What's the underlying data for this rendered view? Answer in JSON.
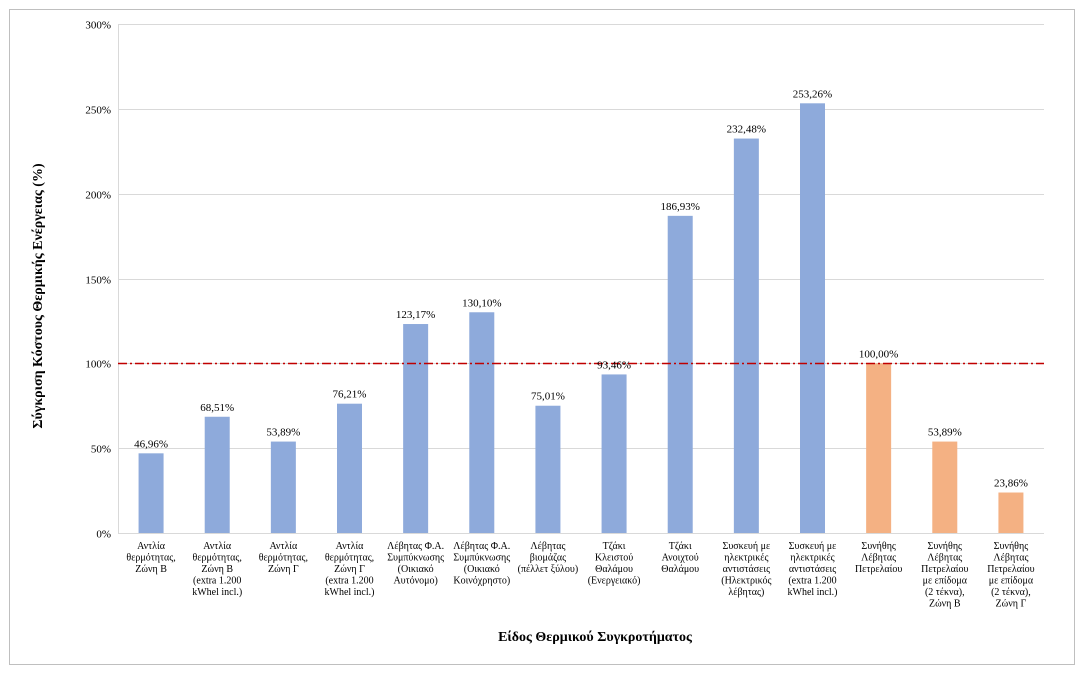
{
  "chart_data": {
    "type": "bar",
    "title": "",
    "xlabel": "Είδος Θερμικού Συγκροτήματος",
    "ylabel": "Σύγκριση Κόστους Θερμικής Ενέργειας (%)",
    "ylim": [
      0,
      300
    ],
    "yticks": [
      0,
      50,
      100,
      150,
      200,
      250,
      300
    ],
    "ytick_labels": [
      "0%",
      "50%",
      "100%",
      "150%",
      "200%",
      "250%",
      "300%"
    ],
    "grid": true,
    "reference_line": {
      "value": 100,
      "color": "#c00000",
      "style": "dash-dot"
    },
    "colors": {
      "heat": "#8eaadb",
      "oil": "#f4b183"
    },
    "categories": [
      [
        "Αντλία",
        "θερμότητας,",
        "Ζώνη Β"
      ],
      [
        "Αντλία",
        "θερμότητας,",
        "Ζώνη Β",
        "(extra 1.200",
        "kWhel incl.)"
      ],
      [
        "Αντλία",
        "θερμότητας,",
        "Ζώνη Γ"
      ],
      [
        "Αντλία",
        "θερμότητας,",
        "Ζώνη Γ",
        "(extra 1.200",
        "kWhel incl.)"
      ],
      [
        "Λέβητας Φ.Α.",
        "Συμπύκνωσης",
        "(Οικιακό",
        "Αυτόνομο)"
      ],
      [
        "Λέβητας Φ.Α.",
        "Συμπύκνωσης",
        "(Οικιακό",
        "Κοινόχρηστο)"
      ],
      [
        "Λέβητας",
        "βιομάζας",
        "(πέλλετ ξύλου)"
      ],
      [
        "Τζάκι",
        "Κλειστού",
        "Θαλάμου",
        "(Ενεργειακό)"
      ],
      [
        "Τζάκι",
        "Ανοιχτού",
        "Θαλάμου"
      ],
      [
        "Συσκευή με",
        "ηλεκτρικές",
        "αντιστάσεις",
        "(Ηλεκτρικός",
        "λέβητας)"
      ],
      [
        "Συσκευή με",
        "ηλεκτρικές",
        "αντιστάσεις",
        "(extra 1.200",
        "kWhel incl.)"
      ],
      [
        "Συνήθης",
        "Λέβητας",
        "Πετρελαίου"
      ],
      [
        "Συνήθης",
        "Λέβητας",
        "Πετρελαίου",
        "με επίδομα",
        "(2 τέκνα),",
        "Ζώνη Β"
      ],
      [
        "Συνήθης",
        "Λέβητας",
        "Πετρελαίου",
        "με επίδομα",
        "(2 τέκνα),",
        "Ζώνη Γ"
      ]
    ],
    "values": [
      46.96,
      68.51,
      53.89,
      76.21,
      123.17,
      130.1,
      75.01,
      93.46,
      186.93,
      232.48,
      253.26,
      100.0,
      53.89,
      23.86
    ],
    "value_labels": [
      "46,96%",
      "68,51%",
      "53,89%",
      "76,21%",
      "123,17%",
      "130,10%",
      "75,01%",
      "93,46%",
      "186,93%",
      "232,48%",
      "253,26%",
      "100,00%",
      "53,89%",
      "23,86%"
    ],
    "bar_groups": [
      "heat",
      "heat",
      "heat",
      "heat",
      "heat",
      "heat",
      "heat",
      "heat",
      "heat",
      "heat",
      "heat",
      "oil",
      "oil",
      "oil"
    ]
  }
}
